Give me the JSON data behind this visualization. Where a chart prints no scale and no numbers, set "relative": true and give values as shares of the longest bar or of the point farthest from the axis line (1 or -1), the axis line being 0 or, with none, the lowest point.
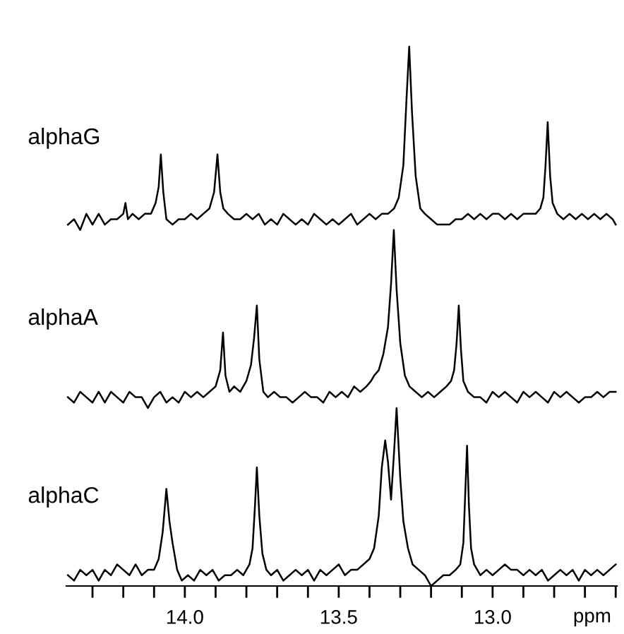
{
  "chart_data": {
    "type": "line",
    "relative": true,
    "xlim": [
      14.385,
      12.596
    ],
    "xlabel": "ppm",
    "xticks": [
      {
        "value": 14.3,
        "label": null
      },
      {
        "value": 14.2,
        "label": null
      },
      {
        "value": 14.1,
        "label": null
      },
      {
        "value": 14.0,
        "label": "14.0"
      },
      {
        "value": 13.9,
        "label": null
      },
      {
        "value": 13.8,
        "label": null
      },
      {
        "value": 13.7,
        "label": null
      },
      {
        "value": 13.6,
        "label": null
      },
      {
        "value": 13.5,
        "label": "13.5"
      },
      {
        "value": 13.4,
        "label": null
      },
      {
        "value": 13.3,
        "label": null
      },
      {
        "value": 13.2,
        "label": null
      },
      {
        "value": 13.1,
        "label": null
      },
      {
        "value": 13.0,
        "label": "13.0"
      },
      {
        "value": 12.9,
        "label": null
      },
      {
        "value": 12.8,
        "label": null
      },
      {
        "value": 12.7,
        "label": null
      },
      {
        "value": 12.6,
        "label": null
      }
    ],
    "series": [
      {
        "name": "alphaG",
        "color": "#000000",
        "x": [
          14.38,
          14.36,
          14.34,
          14.32,
          14.3,
          14.28,
          14.26,
          14.24,
          14.22,
          14.2,
          14.193,
          14.185,
          14.17,
          14.15,
          14.13,
          14.11,
          14.095,
          14.085,
          14.078,
          14.07,
          14.06,
          14.04,
          14.02,
          14.0,
          13.98,
          13.96,
          13.94,
          13.92,
          13.905,
          13.894,
          13.885,
          13.875,
          13.86,
          13.84,
          13.82,
          13.8,
          13.78,
          13.76,
          13.74,
          13.72,
          13.7,
          13.68,
          13.66,
          13.64,
          13.62,
          13.6,
          13.58,
          13.56,
          13.54,
          13.52,
          13.5,
          13.48,
          13.46,
          13.44,
          13.42,
          13.4,
          13.38,
          13.36,
          13.34,
          13.32,
          13.305,
          13.29,
          13.28,
          13.271,
          13.262,
          13.25,
          13.235,
          13.22,
          13.2,
          13.18,
          13.16,
          13.14,
          13.12,
          13.1,
          13.08,
          13.06,
          13.04,
          13.02,
          13.0,
          12.98,
          12.96,
          12.94,
          12.92,
          12.9,
          12.88,
          12.86,
          12.845,
          12.835,
          12.828,
          12.821,
          12.813,
          12.805,
          12.79,
          12.77,
          12.75,
          12.73,
          12.71,
          12.69,
          12.67,
          12.65,
          12.63,
          12.61,
          12.6
        ],
        "values": [
          0.67,
          0.68,
          0.66,
          0.69,
          0.67,
          0.69,
          0.67,
          0.68,
          0.68,
          0.69,
          0.71,
          0.68,
          0.69,
          0.68,
          0.69,
          0.69,
          0.71,
          0.74,
          0.8,
          0.73,
          0.68,
          0.67,
          0.68,
          0.68,
          0.69,
          0.68,
          0.69,
          0.7,
          0.73,
          0.8,
          0.73,
          0.7,
          0.69,
          0.68,
          0.68,
          0.69,
          0.68,
          0.69,
          0.67,
          0.68,
          0.67,
          0.69,
          0.68,
          0.67,
          0.68,
          0.67,
          0.69,
          0.68,
          0.67,
          0.68,
          0.67,
          0.68,
          0.69,
          0.67,
          0.68,
          0.69,
          0.68,
          0.69,
          0.69,
          0.7,
          0.72,
          0.78,
          0.9,
          1.0,
          0.88,
          0.76,
          0.7,
          0.69,
          0.68,
          0.67,
          0.67,
          0.67,
          0.68,
          0.68,
          0.69,
          0.68,
          0.69,
          0.68,
          0.69,
          0.69,
          0.68,
          0.69,
          0.68,
          0.69,
          0.69,
          0.69,
          0.7,
          0.72,
          0.78,
          0.86,
          0.76,
          0.71,
          0.69,
          0.68,
          0.69,
          0.68,
          0.69,
          0.68,
          0.69,
          0.68,
          0.69,
          0.68,
          0.67
        ]
      },
      {
        "name": "alphaA",
        "color": "#000000",
        "x": [
          14.38,
          14.36,
          14.34,
          14.32,
          14.3,
          14.28,
          14.26,
          14.24,
          14.22,
          14.2,
          14.18,
          14.16,
          14.14,
          14.12,
          14.1,
          14.08,
          14.06,
          14.04,
          14.02,
          14.0,
          13.98,
          13.96,
          13.94,
          13.92,
          13.9,
          13.885,
          13.876,
          13.868,
          13.855,
          13.84,
          13.82,
          13.8,
          13.785,
          13.775,
          13.766,
          13.758,
          13.745,
          13.73,
          13.71,
          13.69,
          13.67,
          13.65,
          13.63,
          13.61,
          13.59,
          13.57,
          13.55,
          13.53,
          13.51,
          13.49,
          13.47,
          13.45,
          13.43,
          13.41,
          13.395,
          13.385,
          13.37,
          13.355,
          13.34,
          13.33,
          13.321,
          13.312,
          13.3,
          13.285,
          13.27,
          13.25,
          13.23,
          13.21,
          13.19,
          13.17,
          13.15,
          13.135,
          13.125,
          13.117,
          13.11,
          13.103,
          13.095,
          13.08,
          13.06,
          13.04,
          13.02,
          13.0,
          12.98,
          12.96,
          12.94,
          12.92,
          12.9,
          12.88,
          12.86,
          12.84,
          12.82,
          12.8,
          12.78,
          12.76,
          12.74,
          12.72,
          12.7,
          12.68,
          12.66,
          12.64,
          12.62,
          12.6
        ],
        "values": [
          0.35,
          0.34,
          0.36,
          0.35,
          0.34,
          0.36,
          0.34,
          0.36,
          0.35,
          0.34,
          0.36,
          0.35,
          0.35,
          0.33,
          0.35,
          0.36,
          0.34,
          0.35,
          0.34,
          0.36,
          0.35,
          0.36,
          0.35,
          0.36,
          0.37,
          0.4,
          0.47,
          0.39,
          0.36,
          0.37,
          0.36,
          0.38,
          0.41,
          0.46,
          0.52,
          0.42,
          0.36,
          0.35,
          0.36,
          0.35,
          0.35,
          0.34,
          0.35,
          0.36,
          0.35,
          0.35,
          0.34,
          0.36,
          0.35,
          0.36,
          0.35,
          0.37,
          0.36,
          0.37,
          0.38,
          0.39,
          0.4,
          0.43,
          0.48,
          0.56,
          0.66,
          0.55,
          0.45,
          0.39,
          0.37,
          0.36,
          0.35,
          0.36,
          0.35,
          0.36,
          0.37,
          0.38,
          0.4,
          0.45,
          0.52,
          0.44,
          0.38,
          0.36,
          0.35,
          0.35,
          0.34,
          0.36,
          0.35,
          0.36,
          0.35,
          0.34,
          0.36,
          0.35,
          0.36,
          0.35,
          0.34,
          0.36,
          0.35,
          0.36,
          0.35,
          0.34,
          0.35,
          0.35,
          0.36,
          0.35,
          0.36,
          0.36
        ]
      },
      {
        "name": "alphaC",
        "color": "#000000",
        "x": [
          14.38,
          14.36,
          14.34,
          14.32,
          14.3,
          14.28,
          14.26,
          14.24,
          14.22,
          14.2,
          14.18,
          14.16,
          14.14,
          14.12,
          14.1,
          14.085,
          14.072,
          14.06,
          14.05,
          14.04,
          14.025,
          14.01,
          13.99,
          13.97,
          13.95,
          13.93,
          13.91,
          13.89,
          13.87,
          13.85,
          13.83,
          13.81,
          13.79,
          13.78,
          13.772,
          13.766,
          13.758,
          13.748,
          13.735,
          13.72,
          13.7,
          13.68,
          13.66,
          13.64,
          13.62,
          13.6,
          13.58,
          13.56,
          13.54,
          13.52,
          13.5,
          13.48,
          13.46,
          13.44,
          13.42,
          13.4,
          13.385,
          13.37,
          13.36,
          13.349,
          13.34,
          13.33,
          13.32,
          13.312,
          13.3,
          13.29,
          13.275,
          13.26,
          13.24,
          13.22,
          13.2,
          13.18,
          13.16,
          13.14,
          13.12,
          13.105,
          13.095,
          13.089,
          13.083,
          13.077,
          13.07,
          13.06,
          13.04,
          13.02,
          13.0,
          12.98,
          12.96,
          12.94,
          12.92,
          12.9,
          12.88,
          12.86,
          12.84,
          12.82,
          12.8,
          12.78,
          12.76,
          12.74,
          12.72,
          12.7,
          12.68,
          12.66,
          12.64,
          12.62,
          12.6
        ],
        "values": [
          0.02,
          0.01,
          0.03,
          0.02,
          0.03,
          0.01,
          0.03,
          0.02,
          0.04,
          0.03,
          0.02,
          0.04,
          0.02,
          0.03,
          0.03,
          0.05,
          0.1,
          0.18,
          0.12,
          0.08,
          0.03,
          0.01,
          0.02,
          0.01,
          0.03,
          0.02,
          0.03,
          0.01,
          0.02,
          0.02,
          0.03,
          0.02,
          0.04,
          0.07,
          0.15,
          0.22,
          0.13,
          0.06,
          0.03,
          0.02,
          0.03,
          0.01,
          0.02,
          0.03,
          0.02,
          0.03,
          0.01,
          0.03,
          0.02,
          0.03,
          0.04,
          0.02,
          0.03,
          0.03,
          0.04,
          0.05,
          0.07,
          0.13,
          0.22,
          0.27,
          0.23,
          0.16,
          0.25,
          0.33,
          0.2,
          0.12,
          0.07,
          0.04,
          0.03,
          0.02,
          0.0,
          0.01,
          0.02,
          0.02,
          0.03,
          0.04,
          0.08,
          0.17,
          0.26,
          0.15,
          0.07,
          0.04,
          0.02,
          0.03,
          0.02,
          0.03,
          0.04,
          0.03,
          0.03,
          0.02,
          0.03,
          0.02,
          0.03,
          0.01,
          0.02,
          0.03,
          0.02,
          0.03,
          0.01,
          0.03,
          0.02,
          0.03,
          0.02,
          0.03,
          0.04
        ]
      }
    ]
  }
}
